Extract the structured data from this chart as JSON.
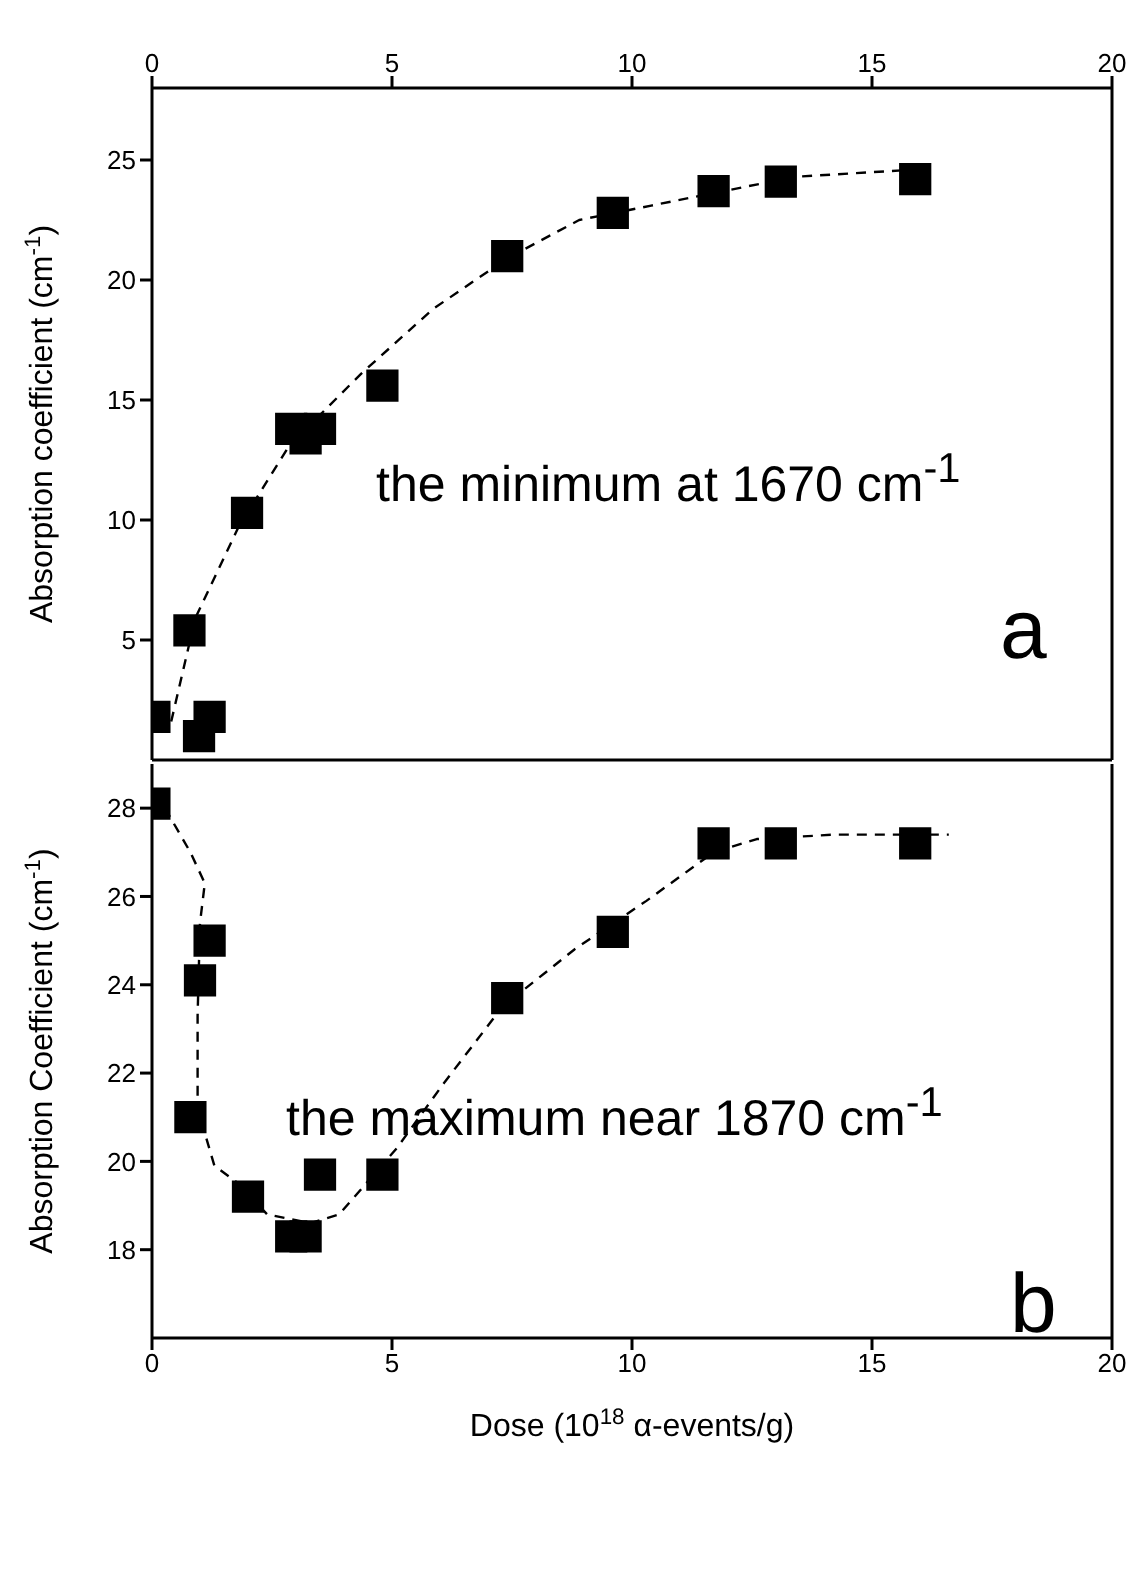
{
  "chart_data": [
    {
      "type": "scatter",
      "ylabel": "Absorption coefficient (cm$^{-1}$)",
      "xlim": [
        0,
        20
      ],
      "xticks": [
        0,
        5,
        10,
        15,
        20
      ],
      "x2lim": [
        0,
        20
      ],
      "x2ticks": [
        0,
        5,
        10,
        15,
        20
      ],
      "tick_labels": "y",
      "ylim": [
        0,
        28
      ],
      "yticks": [
        5,
        10,
        15,
        20,
        25
      ],
      "annotations": [
        "the minimum at 1670 cm$^{-1}$",
        "a"
      ],
      "series": [
        {
          "type": "line",
          "color": "#000000",
          "line_style": "dashed",
          "marker": "none",
          "x": [
            0.4,
            0.9,
            1.8,
            2.86,
            4.36,
            5.86,
            7.4,
            8.9,
            10.4,
            11.9,
            13.4,
            15.9
          ],
          "values": [
            1.6,
            5.9,
            9.7,
            13.1,
            16.1,
            18.8,
            20.9,
            22.5,
            23.1,
            23.7,
            24.3,
            24.6
          ]
        },
        {
          "color": "#000000",
          "marker": "square",
          "x": [
            0.05,
            0.78,
            0.98,
            1.2,
            1.98,
            2.9,
            3.2,
            3.5,
            4.8,
            7.4,
            9.6,
            11.7,
            13.1,
            15.9
          ],
          "values": [
            1.8,
            5.4,
            1.0,
            1.8,
            10.3,
            13.8,
            13.4,
            13.8,
            15.6,
            21.0,
            22.8,
            23.7,
            24.1,
            24.2
          ]
        }
      ]
    },
    {
      "type": "scatter",
      "ylabel": "Absorption Coefficient (cm$^{-1}$)",
      "xlabel": "Dose (10$^{18}$ α-events/g)",
      "xlim": [
        0,
        20
      ],
      "xticks": [
        0,
        5,
        10,
        15,
        20
      ],
      "ylim": [
        16,
        29
      ],
      "yticks": [
        18,
        20,
        22,
        24,
        26,
        28
      ],
      "annotations": [
        "the maximum near 1870 cm$^{-1}$",
        "b"
      ],
      "series": [
        {
          "type": "line",
          "color": "#000000",
          "line_style": "dashed",
          "marker": "none",
          "x": [
            0.27,
            0.8,
            1.1,
            1.0,
            0.95,
            0.95,
            1.3,
            1.8,
            2.4,
            3.3,
            3.9,
            5.1,
            6.1,
            7.3,
            8.8,
            10.3,
            11.7,
            12.6,
            14.2,
            16.6
          ],
          "values": [
            28.0,
            27.0,
            26.3,
            25.4,
            23.3,
            21.2,
            19.9,
            19.5,
            18.8,
            18.6,
            18.8,
            20.3,
            21.8,
            23.5,
            24.8,
            25.9,
            27.0,
            27.3,
            27.4,
            27.4
          ]
        },
        {
          "color": "#000000",
          "marker": "square",
          "x": [
            0.05,
            0.8,
            1.0,
            1.2,
            2.0,
            2.9,
            3.2,
            3.5,
            4.8,
            7.4,
            9.6,
            11.7,
            13.1,
            15.9
          ],
          "values": [
            28.1,
            21.0,
            24.1,
            25.0,
            19.2,
            18.3,
            18.3,
            19.7,
            19.7,
            23.7,
            25.2,
            27.2,
            27.2,
            27.2
          ]
        }
      ]
    }
  ]
}
